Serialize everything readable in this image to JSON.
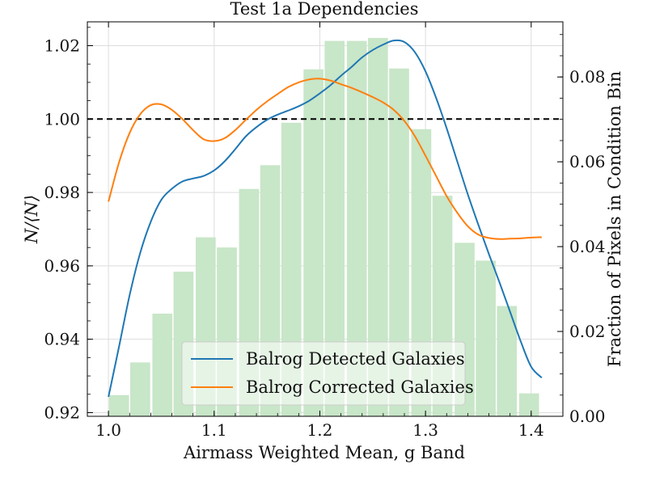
{
  "chart_data": {
    "type": "line",
    "title": "Test 1a Dependencies",
    "xlabel": "Airmass Weighted Mean, g Band",
    "ylabel": "N/⟨N⟩",
    "y2label": "Fraction of Pixels in Condition Bin",
    "xlim": [
      0.98,
      1.43
    ],
    "ylim": [
      0.919,
      1.0265
    ],
    "y2lim": [
      0.0,
      0.093
    ],
    "xticks": [
      1.0,
      1.1,
      1.2,
      1.3,
      1.4
    ],
    "xtick_labels": [
      "1.0",
      "1.1",
      "1.2",
      "1.3",
      "1.4"
    ],
    "yticks": [
      0.92,
      0.94,
      0.96,
      0.98,
      1.0,
      1.02
    ],
    "ytick_labels": [
      "0.92",
      "0.94",
      "0.96",
      "0.98",
      "1.00",
      "1.02"
    ],
    "y2ticks": [
      0.0,
      0.02,
      0.04,
      0.06,
      0.08
    ],
    "y2tick_labels": [
      "0.00",
      "0.02",
      "0.04",
      "0.06",
      "0.08"
    ],
    "grid": true,
    "legend_position": "lower-center",
    "reference_line": {
      "y": 1.0,
      "style": "dashed",
      "color": "#000000"
    },
    "histogram": {
      "color": "#c8e6c8",
      "bin_width": 0.0204,
      "bin_centers": [
        1.01,
        1.03,
        1.051,
        1.071,
        1.092,
        1.112,
        1.133,
        1.153,
        1.173,
        1.194,
        1.214,
        1.235,
        1.255,
        1.275,
        1.296,
        1.316,
        1.337,
        1.357,
        1.377,
        1.398
      ],
      "values": [
        0.005,
        0.0127,
        0.0242,
        0.0341,
        0.0422,
        0.0398,
        0.0536,
        0.0592,
        0.0692,
        0.0818,
        0.0885,
        0.0885,
        0.0892,
        0.082,
        0.0677,
        0.052,
        0.0409,
        0.0367,
        0.026,
        0.0054
      ]
    },
    "series": [
      {
        "name": "Balrog Detected Galaxies",
        "color": "#1f77b4",
        "x": [
          1.0,
          1.01,
          1.02,
          1.03,
          1.04,
          1.05,
          1.06,
          1.07,
          1.08,
          1.09,
          1.1,
          1.11,
          1.12,
          1.13,
          1.14,
          1.15,
          1.16,
          1.17,
          1.18,
          1.19,
          1.2,
          1.21,
          1.22,
          1.23,
          1.24,
          1.25,
          1.26,
          1.27,
          1.28,
          1.29,
          1.3,
          1.31,
          1.32,
          1.33,
          1.34,
          1.35,
          1.36,
          1.37,
          1.38,
          1.39,
          1.4,
          1.41
        ],
        "y": [
          0.9243,
          0.938,
          0.952,
          0.9635,
          0.972,
          0.978,
          0.981,
          0.983,
          0.9838,
          0.9845,
          0.986,
          0.9885,
          0.9918,
          0.9953,
          0.9978,
          0.9998,
          1.0012,
          1.0023,
          1.0035,
          1.005,
          1.007,
          1.0092,
          1.0118,
          1.0142,
          1.0168,
          1.0188,
          1.0203,
          1.0214,
          1.021,
          1.0182,
          1.013,
          1.0058,
          0.9975,
          0.9885,
          0.9795,
          0.9712,
          0.9632,
          0.9555,
          0.9475,
          0.9395,
          0.9325,
          0.9295
        ]
      },
      {
        "name": "Balrog Corrected Galaxies",
        "color": "#ff7f0e",
        "x": [
          1.0,
          1.01,
          1.02,
          1.03,
          1.04,
          1.05,
          1.06,
          1.07,
          1.08,
          1.09,
          1.1,
          1.11,
          1.12,
          1.13,
          1.14,
          1.15,
          1.16,
          1.17,
          1.18,
          1.19,
          1.2,
          1.21,
          1.22,
          1.23,
          1.24,
          1.25,
          1.26,
          1.27,
          1.28,
          1.29,
          1.3,
          1.31,
          1.32,
          1.33,
          1.34,
          1.35,
          1.36,
          1.37,
          1.38,
          1.39,
          1.4,
          1.41
        ],
        "y": [
          0.9775,
          0.9882,
          0.9962,
          1.0013,
          1.0038,
          1.004,
          1.0025,
          1.0,
          0.997,
          0.9945,
          0.994,
          0.9948,
          0.997,
          0.9998,
          1.0025,
          1.0048,
          1.0068,
          1.0087,
          1.01,
          1.0108,
          1.011,
          1.0105,
          1.0095,
          1.0085,
          1.0073,
          1.006,
          1.0045,
          1.0025,
          0.9995,
          0.9953,
          0.99,
          0.9845,
          0.979,
          0.9745,
          0.9708,
          0.9685,
          0.9676,
          0.9673,
          0.9674,
          0.9675,
          0.9677,
          0.9678
        ]
      }
    ]
  }
}
